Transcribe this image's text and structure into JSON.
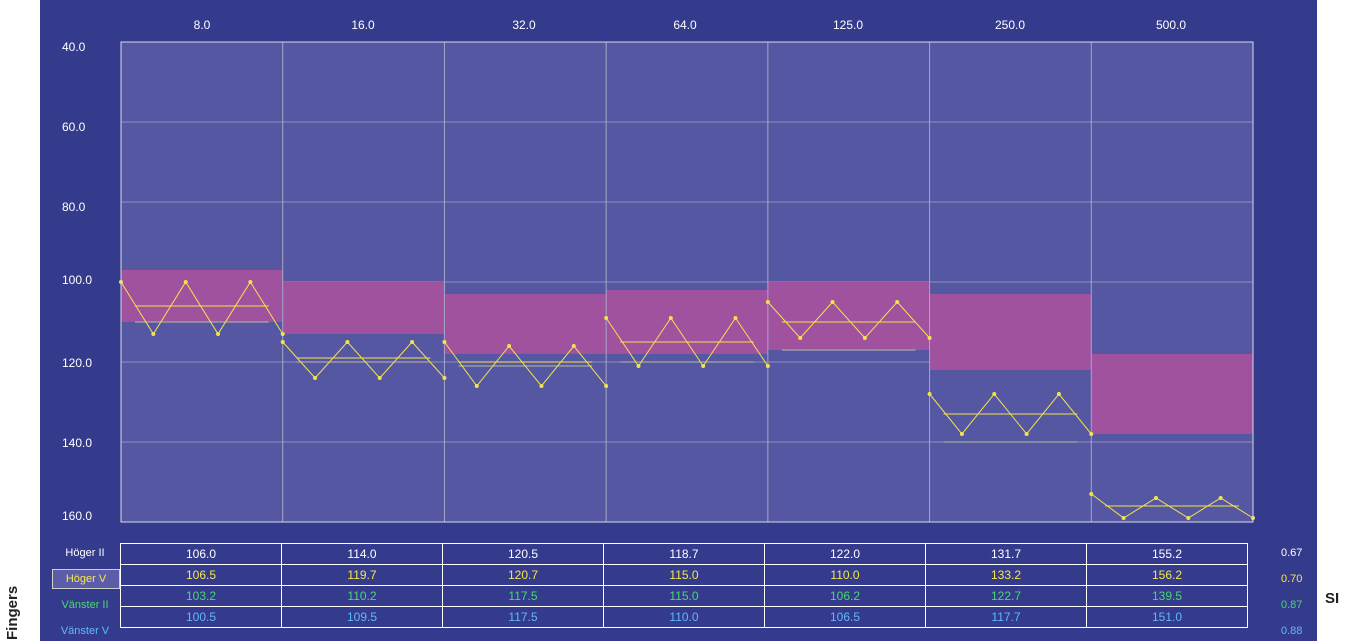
{
  "side": {
    "left_label": "Fingers",
    "right_label": "SI"
  },
  "chart_data": {
    "type": "line",
    "x_tick_labels": [
      "8.0",
      "16.0",
      "32.0",
      "64.0",
      "125.0",
      "250.0",
      "500.0"
    ],
    "y_tick_labels": [
      "40.0",
      "60.0",
      "80.0",
      "100.0",
      "120.0",
      "140.0",
      "160.0"
    ],
    "ylim": [
      40,
      160
    ],
    "y_inverted": true,
    "grid": true,
    "reference_bands": [
      {
        "category": "8.0",
        "range": [
          97,
          110
        ]
      },
      {
        "category": "16.0",
        "range": [
          100,
          113
        ]
      },
      {
        "category": "32.0",
        "range": [
          103,
          118
        ]
      },
      {
        "category": "64.0",
        "range": [
          102,
          118
        ]
      },
      {
        "category": "125.0",
        "range": [
          100,
          117
        ]
      },
      {
        "category": "250.0",
        "range": [
          103,
          122
        ]
      },
      {
        "category": "500.0",
        "range": [
          118,
          138
        ]
      }
    ],
    "series": [
      {
        "values": [
          [
            100,
            113,
            100,
            113,
            100,
            113
          ],
          [
            115,
            124,
            115,
            124,
            115,
            124
          ],
          [
            115,
            126,
            116,
            126,
            116,
            126
          ],
          [
            109,
            121,
            109,
            121,
            109,
            121
          ],
          [
            105,
            114,
            105,
            114,
            105,
            114
          ],
          [
            128,
            138,
            128,
            138,
            128,
            138
          ],
          [
            153,
            159,
            154,
            159,
            154,
            159
          ]
        ]
      }
    ],
    "mean_lines": [
      106,
      119,
      120,
      115,
      110,
      133,
      156
    ],
    "reference_lines": [
      110,
      120,
      121,
      120,
      117,
      140,
      160
    ],
    "colors": {
      "panel": "#353b8c",
      "plot": "#5557a3",
      "band": "#a0529f",
      "trace": "#f2e34a",
      "grid": "#8f8fb8"
    }
  },
  "table": {
    "rows": [
      {
        "label": "Höger II",
        "values": [
          "106.0",
          "114.0",
          "120.5",
          "118.7",
          "122.0",
          "131.7",
          "155.2"
        ],
        "si": "0.67",
        "color": "#ffffff"
      },
      {
        "label": "Höger V",
        "values": [
          "106.5",
          "119.7",
          "120.7",
          "115.0",
          "110.0",
          "133.2",
          "156.2"
        ],
        "si": "0.70",
        "color": "#f5e64a"
      },
      {
        "label": "Vänster II",
        "values": [
          "103.2",
          "110.2",
          "117.5",
          "115.0",
          "106.2",
          "122.7",
          "139.5"
        ],
        "si": "0.87",
        "color": "#49d96b"
      },
      {
        "label": "Vänster V",
        "values": [
          "100.5",
          "109.5",
          "117.5",
          "110.0",
          "106.5",
          "117.7",
          "151.0"
        ],
        "si": "0.88",
        "color": "#5fb8ff"
      }
    ]
  }
}
